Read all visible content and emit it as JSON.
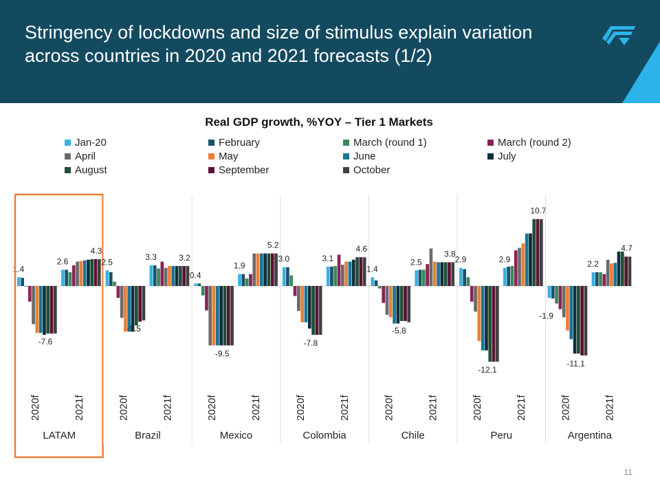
{
  "header": {
    "title": "Stringency of lockdowns and size of stimulus explain variation across countries in 2020 and 2021 forecasts (1/2)",
    "logo": "company-logo"
  },
  "page_number": "11",
  "chart_data": {
    "type": "bar",
    "title": "Real GDP growth, %YOY – Tier 1 Markets",
    "legend_placement": "top",
    "grid": false,
    "series": [
      {
        "name": "Jan-20",
        "color": "#3ab0e2"
      },
      {
        "name": "February",
        "color": "#1b5268"
      },
      {
        "name": "March (round 1)",
        "color": "#3a8a5c"
      },
      {
        "name": "March (round 2)",
        "color": "#8b2356"
      },
      {
        "name": "April",
        "color": "#6a6a6a"
      },
      {
        "name": "May",
        "color": "#e8803a"
      },
      {
        "name": "June",
        "color": "#1b7494"
      },
      {
        "name": "July",
        "color": "#0f2f3c"
      },
      {
        "name": "August",
        "color": "#1f4f35"
      },
      {
        "name": "September",
        "color": "#5a1234"
      },
      {
        "name": "October",
        "color": "#404040"
      }
    ],
    "groups": [
      {
        "name": "LATAM",
        "highlighted": true,
        "periods": [
          {
            "label": "2020f",
            "values": [
              1.4,
              1.3,
              -0.1,
              -2.5,
              -6.1,
              -7.5,
              -7.5,
              -7.8,
              -7.6,
              -7.6,
              -7.6
            ],
            "first_label": "1.4",
            "last_label": "-7.6"
          },
          {
            "label": "2021f",
            "values": [
              2.6,
              2.6,
              2.2,
              3.3,
              3.9,
              4.0,
              4.1,
              4.2,
              4.3,
              4.3,
              4.3
            ],
            "first_label": "2.6",
            "last_label": "4.3"
          }
        ]
      },
      {
        "name": "Brazil",
        "periods": [
          {
            "label": "2020f",
            "values": [
              2.5,
              2.2,
              0.7,
              -1.9,
              -5.1,
              -7.3,
              -7.3,
              -7.3,
              -6.3,
              -5.7,
              -5.5
            ],
            "first_label": "2.5",
            "last_label": "-5.5"
          },
          {
            "label": "2021f",
            "values": [
              3.3,
              3.3,
              2.8,
              3.9,
              2.9,
              3.2,
              3.2,
              3.2,
              3.2,
              3.2,
              3.2
            ],
            "first_label": "3.3",
            "last_label": "3.2"
          }
        ]
      },
      {
        "name": "Mexico",
        "periods": [
          {
            "label": "2020f",
            "values": [
              0.4,
              0.4,
              -1.5,
              -3.9,
              -9.5,
              -9.5,
              -9.5,
              -9.5,
              -9.5,
              -9.5,
              -9.5
            ],
            "first_label": "0.4",
            "last_label": "-9.5"
          },
          {
            "label": "2021f",
            "values": [
              1.9,
              1.9,
              1.2,
              1.9,
              5.2,
              5.2,
              5.2,
              5.2,
              5.2,
              5.2,
              5.2
            ],
            "first_label": "1.9",
            "last_label": "5.2"
          }
        ]
      },
      {
        "name": "Colombia",
        "periods": [
          {
            "label": "2020f",
            "values": [
              3.0,
              3.0,
              1.7,
              -1.6,
              -4.0,
              -5.8,
              -5.8,
              -6.8,
              -7.8,
              -7.8,
              -7.8
            ],
            "first_label": "3.0",
            "last_label": "-7.8"
          },
          {
            "label": "2021f",
            "values": [
              3.1,
              3.1,
              3.2,
              5.0,
              3.4,
              3.9,
              3.9,
              4.2,
              4.6,
              4.6,
              4.6
            ],
            "first_label": "3.1",
            "last_label": "4.6"
          }
        ]
      },
      {
        "name": "Chile",
        "periods": [
          {
            "label": "2020f",
            "values": [
              1.4,
              0.9,
              -0.4,
              -2.7,
              -4.6,
              -5.0,
              -6.0,
              -6.0,
              -5.6,
              -5.6,
              -5.8
            ],
            "first_label": "1.4",
            "last_label": "-5.8"
          },
          {
            "label": "2021f",
            "values": [
              2.5,
              2.6,
              2.6,
              3.5,
              6.0,
              3.9,
              3.8,
              3.8,
              3.8,
              3.8,
              3.8
            ],
            "first_label": "2.5",
            "last_label": "3.8"
          }
        ]
      },
      {
        "name": "Peru",
        "periods": [
          {
            "label": "2020f",
            "values": [
              2.9,
              2.7,
              1.4,
              -2.5,
              -4.1,
              -8.8,
              -10.3,
              -10.3,
              -12.1,
              -12.1,
              -12.1
            ],
            "first_label": "2.9",
            "last_label": "-12.1"
          },
          {
            "label": "2021f",
            "values": [
              2.9,
              3.1,
              3.2,
              5.7,
              6.1,
              6.8,
              8.4,
              8.4,
              10.7,
              10.7,
              10.7
            ],
            "first_label": "2.9",
            "last_label": "10.7"
          }
        ]
      },
      {
        "name": "Argentina",
        "periods": [
          {
            "label": "2020f",
            "values": [
              -1.9,
              -2.0,
              -2.8,
              -3.7,
              -5.0,
              -7.1,
              -8.5,
              -10.8,
              -10.8,
              -11.1,
              -11.1
            ],
            "first_label": "-1.9",
            "last_label": "-11.1"
          },
          {
            "label": "2021f",
            "values": [
              2.2,
              2.2,
              2.2,
              1.9,
              4.2,
              3.6,
              3.7,
              5.5,
              5.5,
              4.7,
              4.7
            ],
            "first_label": "2.2",
            "last_label": "4.7"
          }
        ]
      }
    ]
  }
}
